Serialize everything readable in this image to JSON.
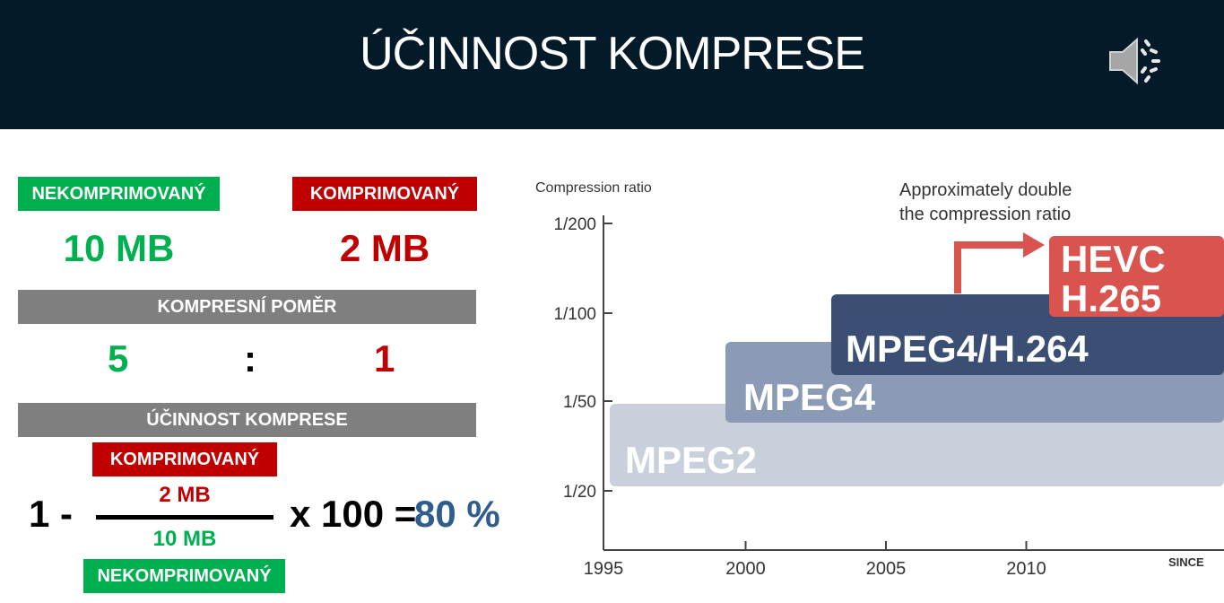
{
  "header": {
    "title": "ÚČINNOST KOMPRESE",
    "speaker_icon": "speaker-icon"
  },
  "left": {
    "uncompressed_label": "NEKOMPRIMOVANÝ",
    "compressed_label": "KOMPRIMOVANÝ",
    "uncompressed_size": "10 MB",
    "compressed_size": "2 MB",
    "ratio_label": "KOMPRESNÍ POMĚR",
    "ratio_left": "5",
    "ratio_colon": ":",
    "ratio_right": "1",
    "efficiency_label": "ÚČINNOST KOMPRESE",
    "formula": {
      "one_minus": "1 -",
      "numerator_label": "KOMPRIMOVANÝ",
      "numerator": "2 MB",
      "denominator": "10 MB",
      "denominator_label": "NEKOMPRIMOVANÝ",
      "times": "x 100 =",
      "result": "80 %"
    }
  },
  "colors": {
    "header_bg": "#031b28",
    "green": "#00b050",
    "red": "#c00000",
    "gray": "#7f7f7f",
    "result_blue": "#2e5d8e"
  },
  "chart_data": {
    "type": "bar",
    "ylabel": "Compression ratio",
    "xlabel": "SINCE",
    "x_ticks": [
      "1995",
      "2000",
      "2005",
      "2010"
    ],
    "y_ticks": [
      "1/200",
      "1/100",
      "1/50",
      "1/20"
    ],
    "annotation": "Approximately double the compression ratio",
    "annotation_lines": [
      "Approximately double",
      "the compression ratio"
    ],
    "series": [
      {
        "name": "MPEG2",
        "start_year": 1995,
        "compression_ratio": "1/20",
        "color": "#c9d0dc"
      },
      {
        "name": "MPEG4",
        "start_year": 1999,
        "compression_ratio": "1/50",
        "color": "#8c9bb5"
      },
      {
        "name": "MPEG4/H.264",
        "start_year": 2003,
        "compression_ratio": "1/100",
        "color": "#3b4f75"
      },
      {
        "name": "HEVC H.265",
        "start_year": 2010,
        "compression_ratio": "1/200",
        "color": "#d9544f"
      }
    ],
    "hevc_lines": [
      "HEVC",
      "H.265"
    ]
  }
}
